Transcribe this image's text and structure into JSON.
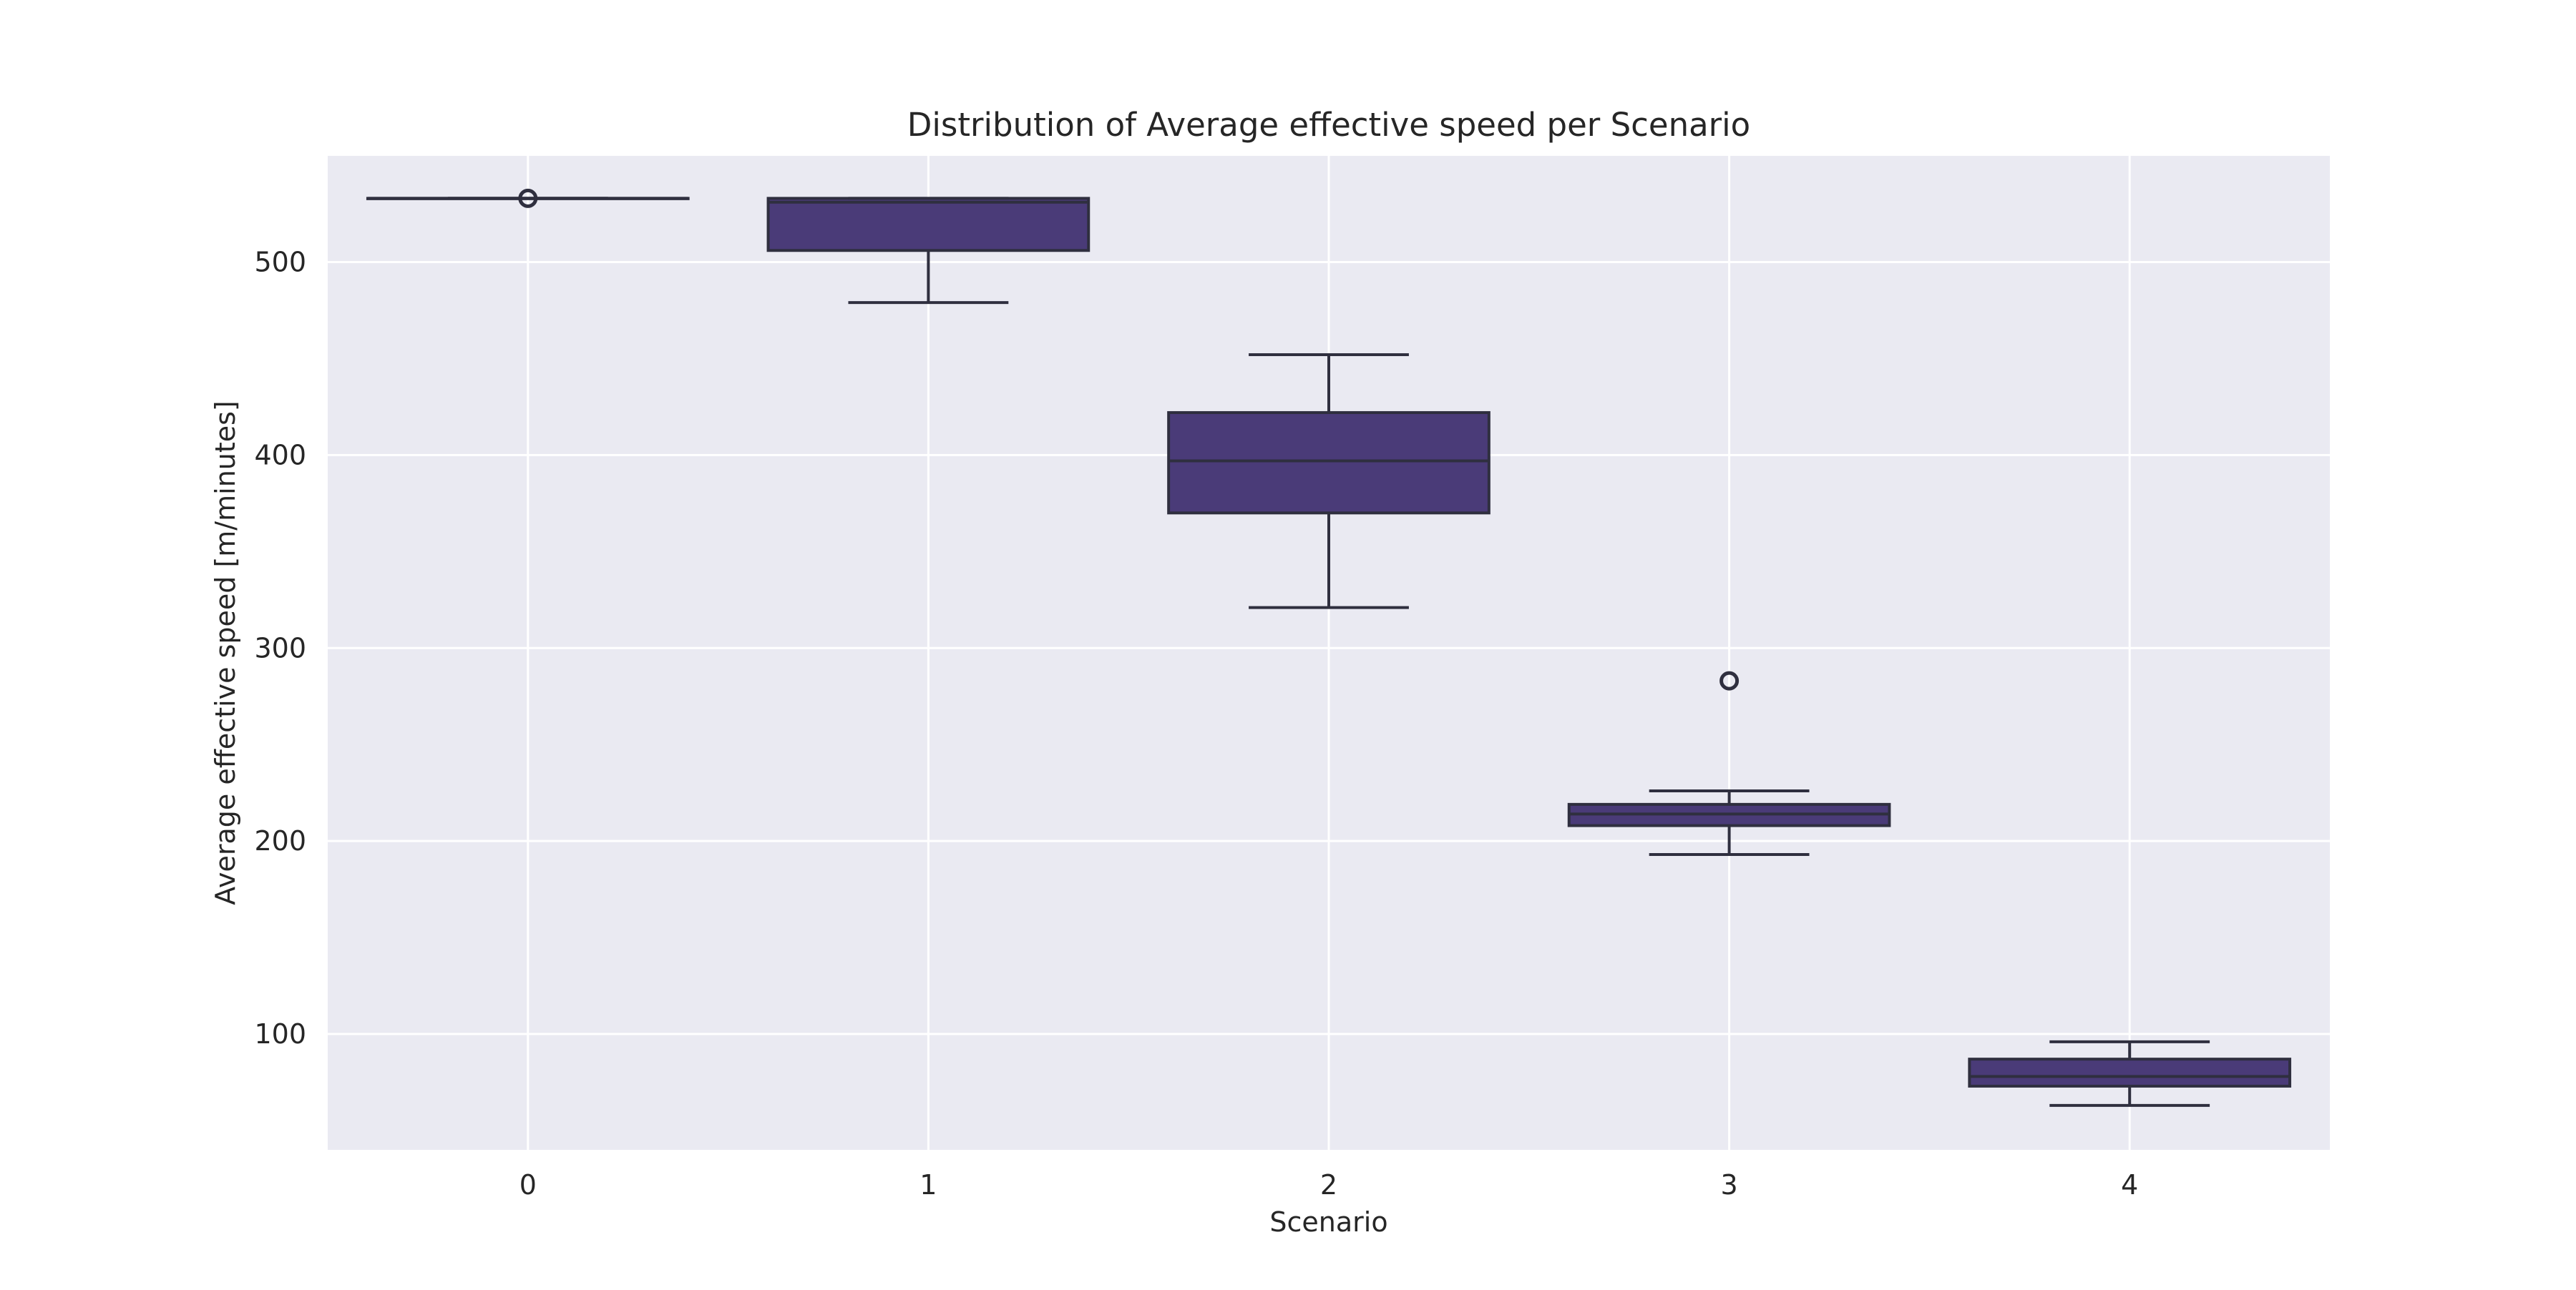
{
  "chart_data": {
    "type": "box",
    "title": "Distribution of Average effective speed per Scenario",
    "xlabel": "Scenario",
    "ylabel": "Average effective speed [m/minutes]",
    "categories": [
      "0",
      "1",
      "2",
      "3",
      "4"
    ],
    "ylim": [
      40,
      555
    ],
    "yticks": [
      100,
      200,
      300,
      400,
      500
    ],
    "grid": true,
    "box_color": "#4a3b78",
    "line_color": "#2f2f3f",
    "background_color": "#eaeaf2",
    "grid_color": "#ffffff",
    "boxes": [
      {
        "category": "0",
        "whisker_low": 533,
        "q1": 533,
        "median": 533,
        "q3": 533,
        "whisker_high": 533,
        "outliers": [
          533
        ]
      },
      {
        "category": "1",
        "whisker_low": 479,
        "q1": 506,
        "median": 531,
        "q3": 533,
        "whisker_high": 533,
        "outliers": []
      },
      {
        "category": "2",
        "whisker_low": 321,
        "q1": 370,
        "median": 397,
        "q3": 422,
        "whisker_high": 452,
        "outliers": []
      },
      {
        "category": "3",
        "whisker_low": 193,
        "q1": 208,
        "median": 214,
        "q3": 219,
        "whisker_high": 226,
        "outliers": [
          283
        ]
      },
      {
        "category": "4",
        "whisker_low": 63,
        "q1": 73,
        "median": 78,
        "q3": 87,
        "whisker_high": 96,
        "outliers": []
      }
    ]
  }
}
